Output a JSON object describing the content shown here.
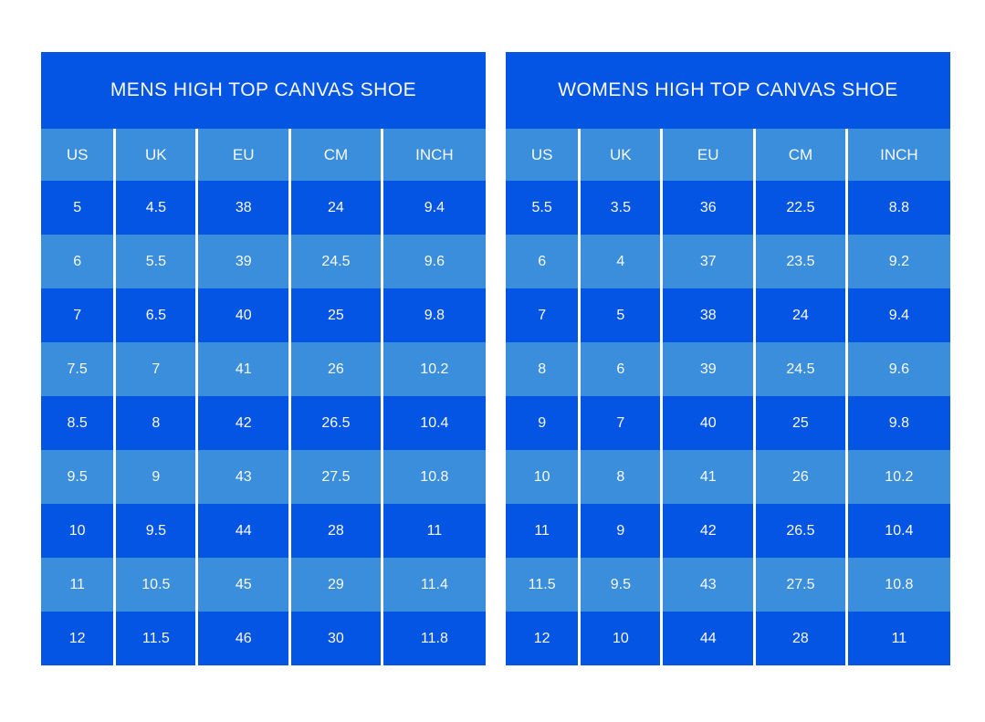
{
  "colors": {
    "dark_blue": "#0555E5",
    "light_blue": "#3A8EDC",
    "text": "#FAFAFA",
    "background": "#FFFFFF"
  },
  "chart_data": [
    {
      "type": "table",
      "title": "MENS HIGH TOP CANVAS SHOE",
      "columns": [
        "US",
        "UK",
        "EU",
        "CM",
        "INCH"
      ],
      "rows": [
        [
          "5",
          "4.5",
          "38",
          "24",
          "9.4"
        ],
        [
          "6",
          "5.5",
          "39",
          "24.5",
          "9.6"
        ],
        [
          "7",
          "6.5",
          "40",
          "25",
          "9.8"
        ],
        [
          "7.5",
          "7",
          "41",
          "26",
          "10.2"
        ],
        [
          "8.5",
          "8",
          "42",
          "26.5",
          "10.4"
        ],
        [
          "9.5",
          "9",
          "43",
          "27.5",
          "10.8"
        ],
        [
          "10",
          "9.5",
          "44",
          "28",
          "11"
        ],
        [
          "11",
          "10.5",
          "45",
          "29",
          "11.4"
        ],
        [
          "12",
          "11.5",
          "46",
          "30",
          "11.8"
        ]
      ],
      "layout": {
        "stripe_pattern": "odd-rows-dark-even-rows-light",
        "header_row_style": "light",
        "separators": "white-vertical-lines-between-columns"
      }
    },
    {
      "type": "table",
      "title": "WOMENS HIGH TOP CANVAS SHOE",
      "columns": [
        "US",
        "UK",
        "EU",
        "CM",
        "INCH"
      ],
      "rows": [
        [
          "5.5",
          "3.5",
          "36",
          "22.5",
          "8.8"
        ],
        [
          "6",
          "4",
          "37",
          "23.5",
          "9.2"
        ],
        [
          "7",
          "5",
          "38",
          "24",
          "9.4"
        ],
        [
          "8",
          "6",
          "39",
          "24.5",
          "9.6"
        ],
        [
          "9",
          "7",
          "40",
          "25",
          "9.8"
        ],
        [
          "10",
          "8",
          "41",
          "26",
          "10.2"
        ],
        [
          "11",
          "9",
          "42",
          "26.5",
          "10.4"
        ],
        [
          "11.5",
          "9.5",
          "43",
          "27.5",
          "10.8"
        ],
        [
          "12",
          "10",
          "44",
          "28",
          "11"
        ]
      ],
      "layout": {
        "stripe_pattern": "odd-rows-dark-even-rows-light",
        "header_row_style": "light",
        "separators": "white-vertical-lines-between-columns"
      }
    }
  ]
}
